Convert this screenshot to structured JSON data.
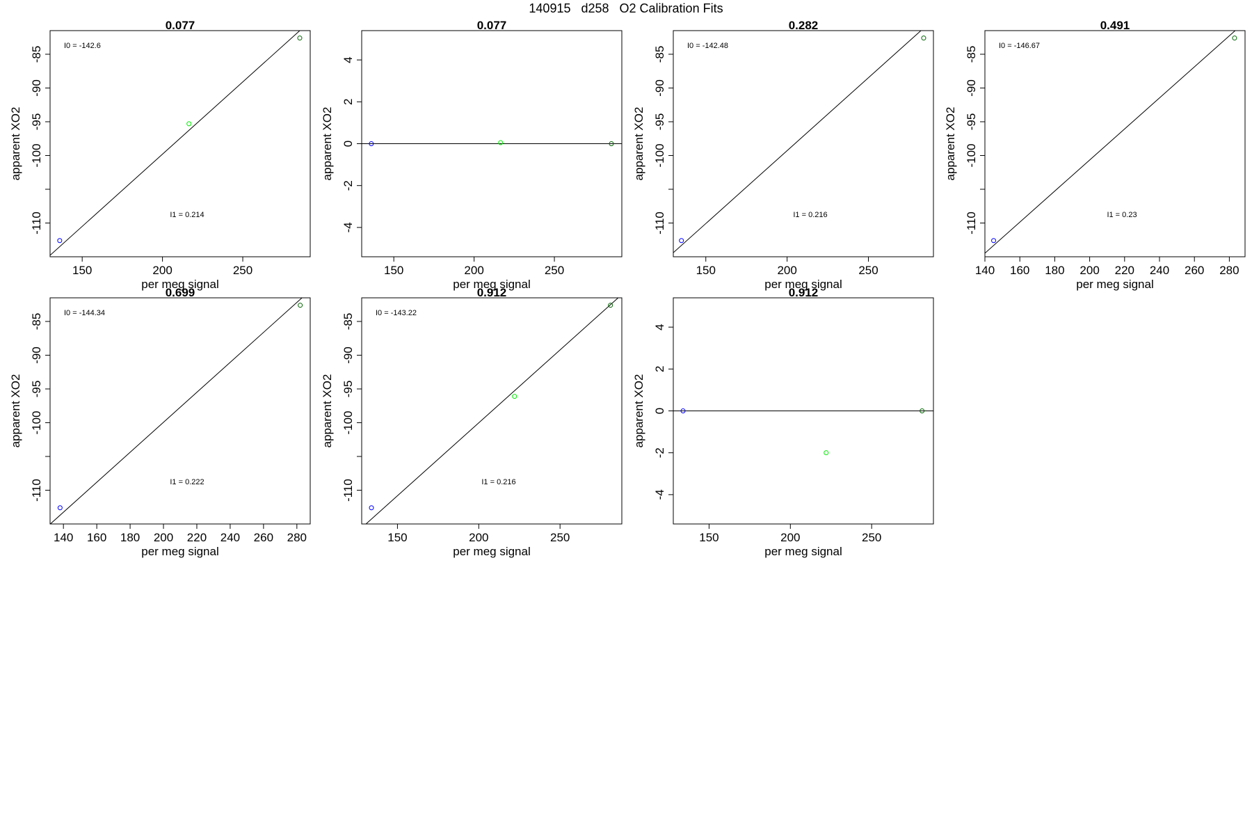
{
  "main_title": "140915   d258   O2 Calibration Fits",
  "colors": {
    "axis": "#000000",
    "fit_line": "#000000",
    "low_std": "#0000ff",
    "mid_std": "#00ee00",
    "high_std": "#006400"
  },
  "chart_data": [
    {
      "type": "scatter",
      "title": "0.077",
      "xlabel": "per meg signal",
      "ylabel": "apparent XO2",
      "xlim": [
        130,
        292
      ],
      "ylim": [
        -115,
        -81.5
      ],
      "xticks": [
        150,
        200,
        250
      ],
      "yticks": [
        -110,
        -100,
        -95,
        -90,
        -85
      ],
      "points": [
        {
          "x": 136,
          "y": -112.6,
          "color": "#0000ff"
        },
        {
          "x": 216.5,
          "y": -95.3,
          "color": "#00ee00"
        },
        {
          "x": 285.5,
          "y": -82.6,
          "color": "#006400"
        }
      ],
      "fit": {
        "intercept": -142.6,
        "slope": 0.214
      },
      "annotations": {
        "intercept_label": "I0 =  -142.6",
        "slope_label": "I1 =  0.214"
      }
    },
    {
      "type": "scatter",
      "title": "0.077",
      "xlabel": "per meg signal",
      "ylabel": "apparent XO2",
      "xlim": [
        130,
        292
      ],
      "ylim": [
        -5.4,
        5.4
      ],
      "xticks": [
        150,
        200,
        250
      ],
      "yticks": [
        -4,
        -2,
        0,
        2,
        4
      ],
      "points": [
        {
          "x": 136,
          "y": 0,
          "color": "#0000ff"
        },
        {
          "x": 216.5,
          "y": 0.05,
          "color": "#00ee00"
        },
        {
          "x": 285.5,
          "y": 0,
          "color": "#006400"
        }
      ],
      "fit": {
        "intercept": 0,
        "slope": 0
      },
      "annotations": {}
    },
    {
      "type": "scatter",
      "title": "0.282",
      "xlabel": "per meg signal",
      "ylabel": "apparent XO2",
      "xlim": [
        130,
        290
      ],
      "ylim": [
        -115,
        -81.5
      ],
      "xticks": [
        150,
        200,
        250
      ],
      "yticks": [
        -110,
        -100,
        -95,
        -90,
        -85
      ],
      "points": [
        {
          "x": 135,
          "y": -112.6,
          "color": "#0000ff"
        },
        {
          "x": 284,
          "y": -82.6,
          "color": "#006400"
        }
      ],
      "fit": {
        "intercept": -142.48,
        "slope": 0.216
      },
      "annotations": {
        "intercept_label": "I0 =  -142.48",
        "slope_label": "I1 =  0.216"
      }
    },
    {
      "type": "scatter",
      "title": "0.491",
      "xlabel": "per meg signal",
      "ylabel": "apparent XO2",
      "xlim": [
        140,
        289
      ],
      "ylim": [
        -115,
        -81.5
      ],
      "xticks": [
        140,
        160,
        180,
        200,
        220,
        240,
        260,
        280
      ],
      "yticks": [
        -110,
        -100,
        -95,
        -90,
        -85
      ],
      "points": [
        {
          "x": 145,
          "y": -112.6,
          "color": "#0000ff"
        },
        {
          "x": 283,
          "y": -82.6,
          "color": "#006400"
        }
      ],
      "fit": {
        "intercept": -146.67,
        "slope": 0.23
      },
      "annotations": {
        "intercept_label": "I0 =  -146.67",
        "slope_label": "I1 =  0.23"
      }
    },
    {
      "type": "scatter",
      "title": "0.699",
      "xlabel": "per meg signal",
      "ylabel": "apparent XO2",
      "xlim": [
        132,
        288
      ],
      "ylim": [
        -115,
        -81.5
      ],
      "xticks": [
        140,
        160,
        180,
        200,
        220,
        240,
        260,
        280
      ],
      "yticks": [
        -110,
        -100,
        -95,
        -90,
        -85
      ],
      "points": [
        {
          "x": 138,
          "y": -112.6,
          "color": "#0000ff"
        },
        {
          "x": 282,
          "y": -82.6,
          "color": "#006400"
        }
      ],
      "fit": {
        "intercept": -144.34,
        "slope": 0.222
      },
      "annotations": {
        "intercept_label": "I0 =  -144.34",
        "slope_label": "I1 =  0.222"
      }
    },
    {
      "type": "scatter",
      "title": "0.912",
      "xlabel": "per meg signal",
      "ylabel": "apparent XO2",
      "xlim": [
        128,
        288
      ],
      "ylim": [
        -115,
        -81.5
      ],
      "xticks": [
        150,
        200,
        250
      ],
      "yticks": [
        -110,
        -100,
        -95,
        -90,
        -85
      ],
      "points": [
        {
          "x": 134,
          "y": -112.6,
          "color": "#0000ff"
        },
        {
          "x": 222,
          "y": -96.1,
          "color": "#00ee00"
        },
        {
          "x": 281,
          "y": -82.6,
          "color": "#006400"
        }
      ],
      "fit": {
        "intercept": -143.22,
        "slope": 0.216
      },
      "annotations": {
        "intercept_label": "I0 =  -143.22",
        "slope_label": "I1 =  0.216"
      }
    },
    {
      "type": "scatter",
      "title": "0.912",
      "xlabel": "per meg signal",
      "ylabel": "apparent XO2",
      "xlim": [
        128,
        288
      ],
      "ylim": [
        -5.4,
        5.4
      ],
      "xticks": [
        150,
        200,
        250
      ],
      "yticks": [
        -4,
        -2,
        0,
        2,
        4
      ],
      "points": [
        {
          "x": 134,
          "y": 0,
          "color": "#0000ff"
        },
        {
          "x": 222,
          "y": -2,
          "color": "#00ee00"
        },
        {
          "x": 281,
          "y": 0,
          "color": "#006400"
        }
      ],
      "fit": {
        "intercept": 0,
        "slope": 0
      },
      "annotations": {}
    }
  ]
}
